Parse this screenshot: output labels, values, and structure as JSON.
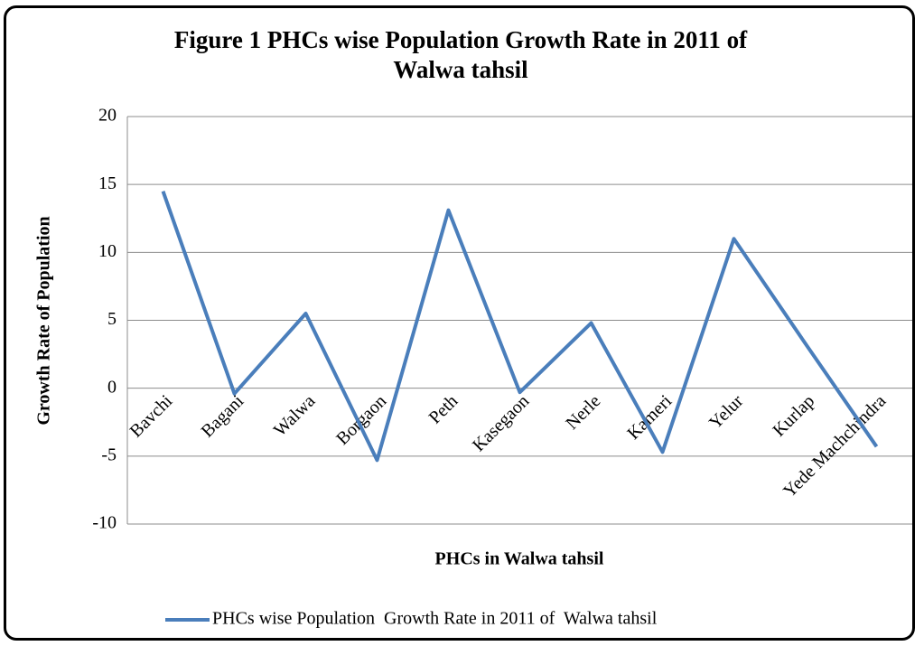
{
  "chart_data": {
    "type": "line",
    "title": "Figure 1 PHCs wise Population  Growth Rate in 2011 of Walwa tahsil",
    "x_label": "PHCs in Walwa tahsil",
    "y_label": "Growth Rate of Population",
    "categories": [
      "Bavchi",
      "Bagani",
      "Walwa",
      "Borgaon",
      "Peth",
      "Kasegaon",
      "Nerle",
      "Kameri",
      "Yelur",
      "Kurlap",
      "Yede Machchindra"
    ],
    "series": [
      {
        "name": "PHCs wise Population  Growth Rate in 2011 of  Walwa tahsil",
        "color": "#4a7ebb",
        "values": [
          14.5,
          -0.4,
          5.5,
          -5.3,
          13.1,
          -0.3,
          4.8,
          -4.7,
          11.0,
          3.3,
          -4.3
        ]
      }
    ],
    "ylim": [
      -10,
      20
    ],
    "yticks": [
      -10,
      -5,
      0,
      5,
      10,
      15,
      20
    ],
    "grid": true,
    "legend": "bottom"
  }
}
